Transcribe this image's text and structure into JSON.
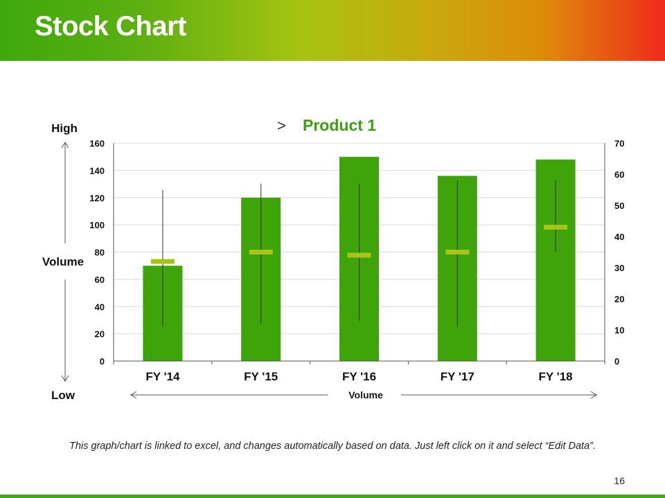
{
  "slide": {
    "title": "Stock Chart",
    "footnote": "This graph/chart is linked to excel, and changes automatically based on data. Just left click on it and select “Edit Data”.",
    "page_number": "16"
  },
  "labels": {
    "high": "High",
    "low": "Low",
    "left_volume": "Volume",
    "bottom_volume": "Volume",
    "chevron": ">"
  },
  "colors": {
    "bar": "#3ea40a",
    "close_marker": "#a8c41a",
    "whisker": "#333333",
    "title_green": "#3aa010"
  },
  "chart_data": {
    "type": "bar",
    "title": "Product 1",
    "categories": [
      "FY '14",
      "FY '15",
      "FY '16",
      "FY '17",
      "FY '18"
    ],
    "series": [
      {
        "axis": "left",
        "values": [
          70,
          120,
          150,
          136,
          148
        ]
      },
      {
        "axis": "right",
        "high": [
          55,
          57,
          57,
          58,
          58
        ],
        "low": [
          11,
          12,
          13,
          11,
          35
        ],
        "close": [
          32,
          35,
          34,
          35,
          43
        ]
      }
    ],
    "ylim_left": [
      0,
      160
    ],
    "yticks_left": [
      0,
      20,
      40,
      60,
      80,
      100,
      120,
      140,
      160
    ],
    "ylim_right": [
      0,
      70
    ],
    "yticks_right": [
      0,
      10,
      20,
      30,
      40,
      50,
      60,
      70
    ],
    "grid": true,
    "legend": "none"
  }
}
